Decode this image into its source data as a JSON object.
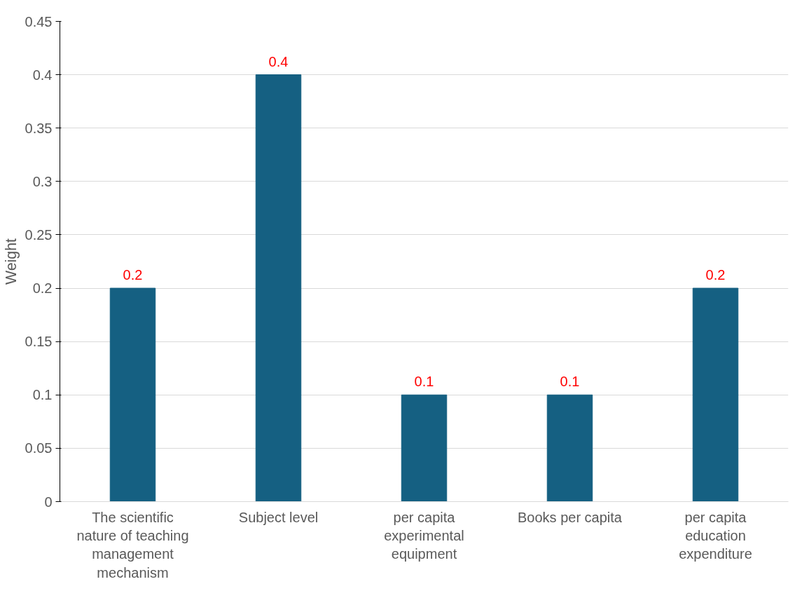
{
  "chart_data": {
    "type": "bar",
    "ylabel": "Weight",
    "categories": [
      "The scientific nature of teaching management mechanism",
      "Subject level",
      "per capita experimental equipment",
      "Books per capita",
      "per capita education expenditure"
    ],
    "values": [
      0.2,
      0.4,
      0.1,
      0.1,
      0.2
    ],
    "color": "#156082",
    "data_labels": true,
    "ylim": [
      0,
      0.45
    ],
    "yticks": [
      0,
      0.05,
      0.1,
      0.15,
      0.2,
      0.25,
      0.3,
      0.35,
      0.4,
      0.45
    ],
    "grid": "y"
  }
}
